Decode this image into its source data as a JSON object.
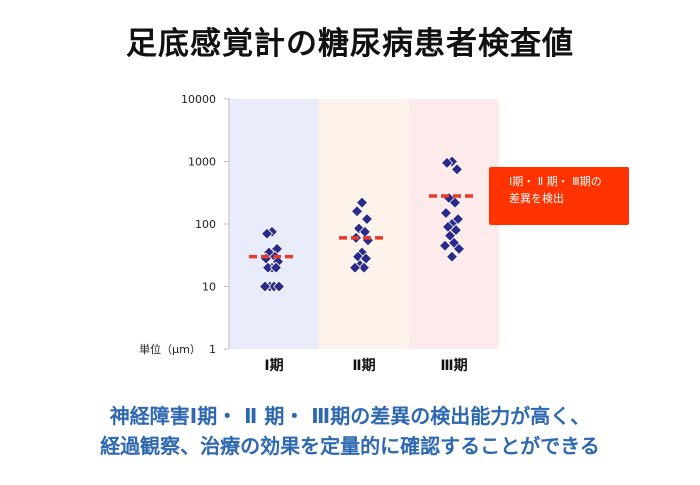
{
  "title": "足底感覚計の糖尿病患者検査値",
  "callout": {
    "line1": "Ⅰ期・ Ⅱ 期・ Ⅲ期の",
    "line2": "差異を検出"
  },
  "summary": {
    "line1": "神経障害Ⅰ期・ Ⅱ 期・ Ⅲ期の差異の検出能力が高く、",
    "line2": "経過観察、治療の効果を定量的に確認することができる"
  },
  "chart_data": {
    "type": "scatter",
    "y_scale": "log",
    "ylim": [
      1,
      10000
    ],
    "y_unit_label": "単位（μm）",
    "y_ticks": [
      {
        "value": 1,
        "label": "1"
      },
      {
        "value": 10,
        "label": "10"
      },
      {
        "value": 100,
        "label": "100"
      },
      {
        "value": 1000,
        "label": "1000"
      },
      {
        "value": 10000,
        "label": "10000"
      }
    ],
    "grid": false,
    "categories": [
      "Ⅰ期",
      "Ⅱ期",
      "Ⅲ期"
    ],
    "category_backgrounds": [
      "#e9edfb",
      "#fdf3ea",
      "#fdeaea"
    ],
    "marker_color": "#2a2a8c",
    "mean_line_color": "#e83a2a",
    "series": [
      {
        "values": [
          75,
          70,
          40,
          35,
          30,
          28,
          25,
          20,
          20,
          20,
          10,
          10,
          10,
          10
        ],
        "mean": 30
      },
      {
        "values": [
          220,
          160,
          120,
          85,
          75,
          60,
          55,
          35,
          30,
          28,
          22,
          20,
          20
        ],
        "mean": 60
      },
      {
        "values": [
          1000,
          950,
          750,
          260,
          220,
          150,
          120,
          100,
          90,
          80,
          65,
          50,
          45,
          40,
          30
        ],
        "mean": 280
      }
    ]
  }
}
